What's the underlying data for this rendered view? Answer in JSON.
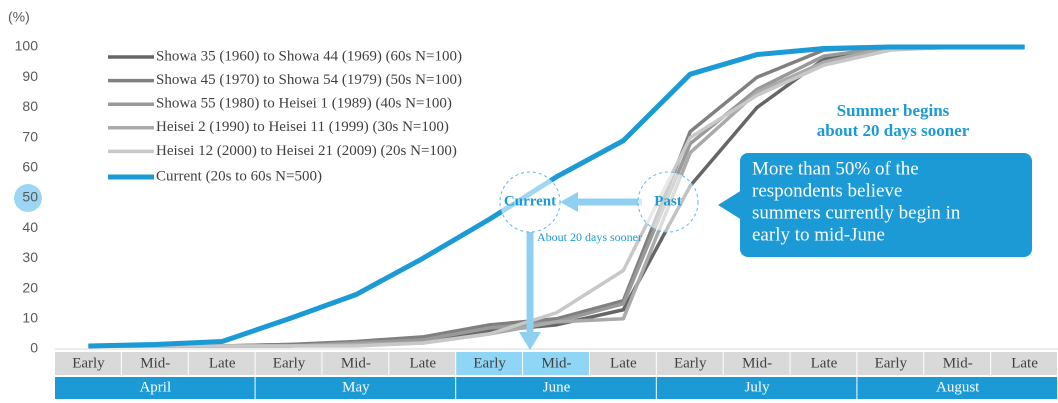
{
  "chart_data": {
    "type": "line",
    "y_unit": "(%)",
    "categories": [
      "Early",
      "Mid-",
      "Late",
      "Early",
      "Mid-",
      "Late",
      "Early",
      "Mid-",
      "Late",
      "Early",
      "Mid-",
      "Late",
      "Early",
      "Mid-",
      "Late"
    ],
    "groups": [
      "April",
      "May",
      "June",
      "July",
      "August"
    ],
    "ylim": [
      0,
      100
    ],
    "yticks": [
      0,
      10,
      20,
      30,
      40,
      50,
      60,
      70,
      80,
      90,
      100
    ],
    "series": [
      {
        "name": "Showa 35 (1960) to Showa 44 (1969) (60s N=100)",
        "color": "#666666",
        "values": [
          1,
          1,
          1,
          1.5,
          2,
          3,
          6,
          8,
          13,
          54,
          80,
          96,
          100,
          100,
          100
        ]
      },
      {
        "name": "Showa 45 (1970) to Showa 54 (1979) (50s N=100)",
        "color": "#808080",
        "values": [
          1,
          1,
          1,
          1.5,
          2.5,
          4,
          8,
          10,
          16,
          72,
          90,
          99,
          100,
          100,
          100
        ]
      },
      {
        "name": "Showa 55 (1980) to Heisei 1 (1989) (40s N=100)",
        "color": "#999999",
        "values": [
          1,
          1,
          1,
          1,
          2,
          3,
          7,
          9,
          15,
          68,
          86,
          97,
          100,
          100,
          100
        ]
      },
      {
        "name": "Heisei 2 (1990) to Heisei 11 (1999) (30s N=100)",
        "color": "#aaaaaa",
        "values": [
          1,
          1,
          1,
          1,
          1.5,
          2,
          5,
          9,
          10,
          65,
          85,
          95,
          100,
          100,
          100
        ]
      },
      {
        "name": "Heisei 12 (2000) to Heisei 21 (2009) (20s N=100)",
        "color": "#c8c8c8",
        "values": [
          1,
          1,
          1,
          1,
          1,
          2,
          5,
          12,
          26,
          70,
          84,
          94,
          99,
          100,
          100
        ]
      },
      {
        "name": "Current (20s to 60s N=500)",
        "color": "#1b9ad6",
        "values": [
          1,
          1.5,
          2.5,
          10,
          18,
          30,
          43,
          57,
          69,
          91,
          97.5,
          99.5,
          100,
          100,
          100
        ]
      }
    ],
    "annotations": {
      "headline": [
        "Summer begins",
        "about 20 days sooner"
      ],
      "callout": [
        "More than 50% of the",
        "respondents believe",
        "summers  currently begin in",
        "early to mid-June"
      ],
      "current": "Current",
      "past": "Past",
      "shift": "About 20 days sooner"
    }
  }
}
